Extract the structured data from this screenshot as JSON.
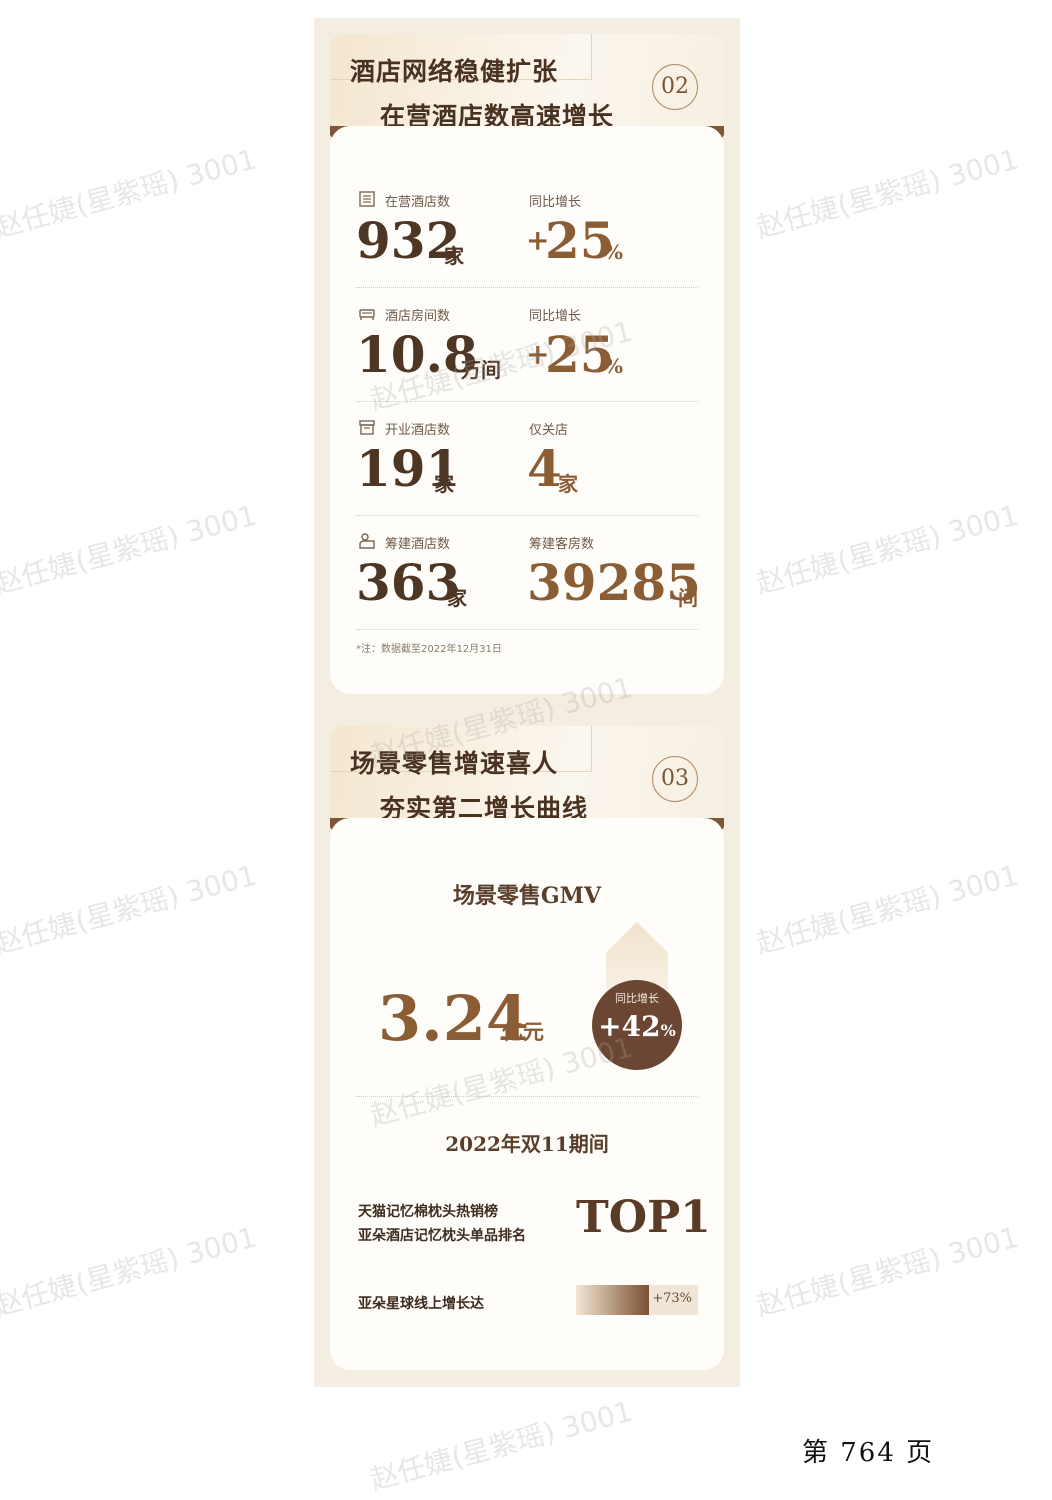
{
  "section2": {
    "line1": "酒店网络稳健扩张",
    "line2": "在营酒店数高速增长",
    "num": "02",
    "stats": [
      {
        "label": "在营酒店数",
        "value": "932",
        "unit": "家",
        "icon": "hotel-building-icon"
      },
      {
        "label": "同比增长",
        "sign": "+",
        "value": "25",
        "unit": "%"
      },
      {
        "label": "酒店房间数",
        "value": "10.8",
        "unit": "万间",
        "icon": "bed-icon"
      },
      {
        "label": "同比增长",
        "sign": "+",
        "value": "25",
        "unit": "%"
      },
      {
        "label": "开业酒店数",
        "value": "191",
        "unit": "家",
        "icon": "storefront-icon"
      },
      {
        "label": "仅关店",
        "value": "4",
        "unit": "家"
      },
      {
        "label": "筹建酒店数",
        "value": "363",
        "unit": "家",
        "icon": "construction-icon"
      },
      {
        "label": "筹建客房数",
        "value": "39285",
        "unit": "间"
      }
    ],
    "note": "*注：数据截至2022年12月31日"
  },
  "section3": {
    "line1": "场景零售增速喜人",
    "line2": "夯实第二增长曲线",
    "num": "03",
    "gmv_title": "场景零售GMV",
    "gmv_value": "3.24",
    "gmv_unit": "亿元",
    "bubble_label": "同比增长",
    "bubble_value": "+42",
    "bubble_unit": "%",
    "subtitle": "2022年双11期间",
    "rank_line1": "天猫记忆棉枕头热销榜",
    "rank_line2": "亚朵酒店记忆枕头单品排名",
    "rank_value": "TOP1",
    "growth_label": "亚朵星球线上增长达",
    "growth_value": "+73%",
    "growth_fraction": 0.6
  },
  "watermark": "赵任婕(星紫瑶) 3001",
  "page_number": "第  764  页"
}
